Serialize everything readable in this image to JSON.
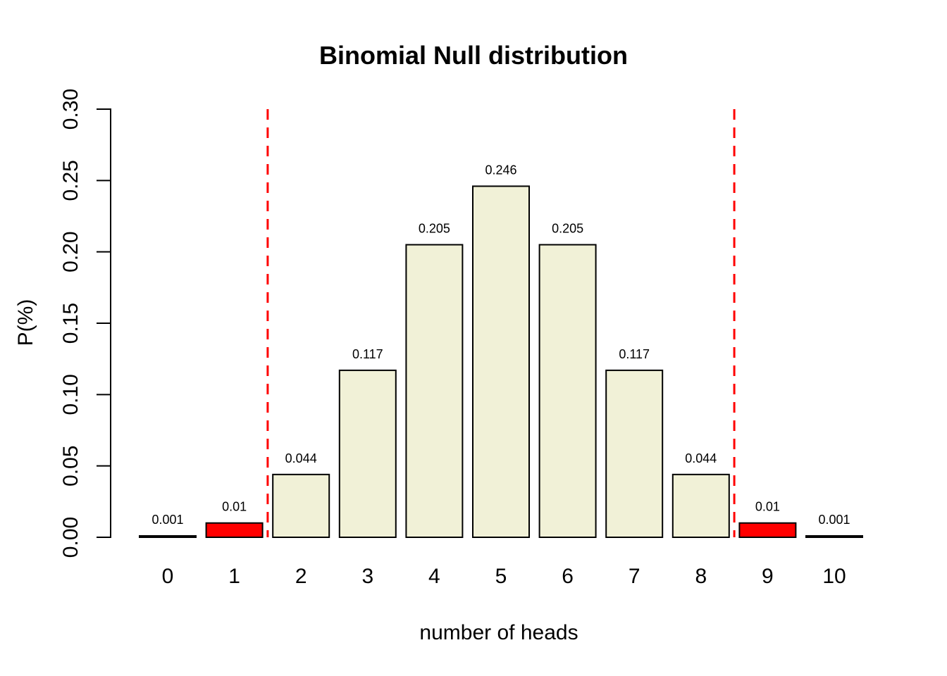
{
  "chart_data": {
    "type": "bar",
    "title": "Binomial Null distribution",
    "xlabel": "number of heads",
    "ylabel": "P(%)",
    "categories": [
      "0",
      "1",
      "2",
      "3",
      "4",
      "5",
      "6",
      "7",
      "8",
      "9",
      "10"
    ],
    "values": [
      0.001,
      0.01,
      0.044,
      0.117,
      0.205,
      0.246,
      0.205,
      0.117,
      0.044,
      0.01,
      0.001
    ],
    "bar_labels": [
      "0.001",
      "0.01",
      "0.044",
      "0.117",
      "0.205",
      "0.246",
      "0.205",
      "0.117",
      "0.044",
      "0.01",
      "0.001"
    ],
    "bar_colors": [
      "#F1F1D7",
      "#FF0000",
      "#F1F1D7",
      "#F1F1D7",
      "#F1F1D7",
      "#F1F1D7",
      "#F1F1D7",
      "#F1F1D7",
      "#F1F1D7",
      "#FF0000",
      "#F1F1D7"
    ],
    "bar_border_color": "#000000",
    "axis_color": "#000000",
    "background": "#FFFFFF",
    "ylim": [
      0,
      0.3
    ],
    "yticks": [
      "0.00",
      "0.05",
      "0.10",
      "0.15",
      "0.20",
      "0.25",
      "0.30"
    ],
    "reference_lines": [
      {
        "x": 1.5,
        "color": "#FF0000",
        "style": "dashed"
      },
      {
        "x": 8.5,
        "color": "#FF0000",
        "style": "dashed"
      }
    ],
    "grid": false,
    "legend": "none"
  }
}
